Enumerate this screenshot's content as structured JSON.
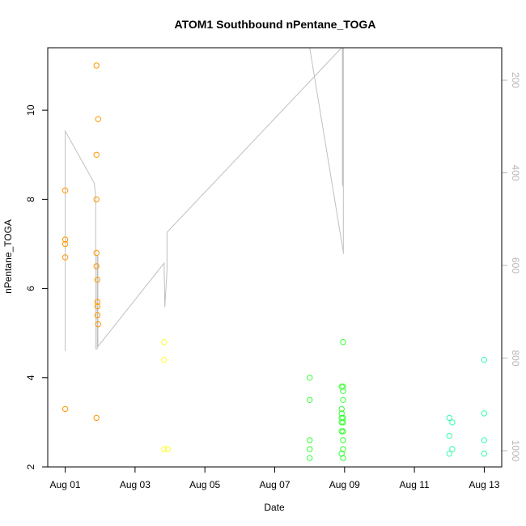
{
  "chart_data": {
    "type": "scatter",
    "title": "ATOM1 Southbound nPentane_TOGA",
    "xlabel": "Date",
    "ylabel": "nPentane_TOGA",
    "x_ticks": [
      "Aug 01",
      "Aug 03",
      "Aug 05",
      "Aug 07",
      "Aug 09",
      "Aug 11",
      "Aug 13"
    ],
    "xlim": [
      "Jul 31 12:00",
      "Aug 13 12:00"
    ],
    "ylim": [
      2,
      11.4
    ],
    "y_ticks": [
      2,
      4,
      6,
      8,
      10
    ],
    "right_axis": {
      "ticks": [
        200,
        400,
        600,
        800,
        1000
      ],
      "range": [
        130,
        1035
      ],
      "inverted": true,
      "color": "#b8b8b8"
    },
    "grid": false,
    "series": [
      {
        "color": "#ff9900",
        "points": [
          {
            "x": "Aug 01 00:00",
            "y": 8.2
          },
          {
            "x": "Aug 01 00:00",
            "y": 7.1
          },
          {
            "x": "Aug 01 00:00",
            "y": 7.0
          },
          {
            "x": "Aug 01 00:00",
            "y": 6.7
          },
          {
            "x": "Aug 01 00:00",
            "y": 3.3
          },
          {
            "x": "Aug 01 21:30",
            "y": 11.0
          },
          {
            "x": "Aug 01 21:30",
            "y": 9.0
          },
          {
            "x": "Aug 01 21:30",
            "y": 8.0
          },
          {
            "x": "Aug 01 21:30",
            "y": 6.8
          },
          {
            "x": "Aug 01 21:30",
            "y": 6.5
          },
          {
            "x": "Aug 01 21:30",
            "y": 3.1
          },
          {
            "x": "Aug 01 22:10",
            "y": 6.2
          },
          {
            "x": "Aug 01 22:10",
            "y": 5.7
          },
          {
            "x": "Aug 01 22:10",
            "y": 5.6
          },
          {
            "x": "Aug 01 22:10",
            "y": 5.4
          },
          {
            "x": "Aug 01 22:40",
            "y": 9.8
          },
          {
            "x": "Aug 01 22:40",
            "y": 5.2
          }
        ]
      },
      {
        "color": "#ffff33",
        "points": [
          {
            "x": "Aug 03 20:00",
            "y": 4.8
          },
          {
            "x": "Aug 03 20:00",
            "y": 4.4
          },
          {
            "x": "Aug 03 20:00",
            "y": 2.4
          },
          {
            "x": "Aug 03 22:30",
            "y": 2.4
          }
        ]
      },
      {
        "color": "#33ff33",
        "points": [
          {
            "x": "Aug 08 00:00",
            "y": 4.0
          },
          {
            "x": "Aug 08 00:00",
            "y": 3.5
          },
          {
            "x": "Aug 08 00:00",
            "y": 2.6
          },
          {
            "x": "Aug 08 00:00",
            "y": 2.4
          },
          {
            "x": "Aug 08 00:00",
            "y": 2.2
          },
          {
            "x": "Aug 08 22:00",
            "y": 3.8
          },
          {
            "x": "Aug 08 22:00",
            "y": 3.3
          },
          {
            "x": "Aug 08 22:00",
            "y": 3.2
          },
          {
            "x": "Aug 08 22:00",
            "y": 3.1
          },
          {
            "x": "Aug 08 22:00",
            "y": 3.0
          },
          {
            "x": "Aug 08 22:00",
            "y": 2.8
          },
          {
            "x": "Aug 08 22:00",
            "y": 2.3
          },
          {
            "x": "Aug 08 23:00",
            "y": 4.8
          },
          {
            "x": "Aug 08 23:00",
            "y": 3.8
          },
          {
            "x": "Aug 08 23:00",
            "y": 3.7
          },
          {
            "x": "Aug 08 23:00",
            "y": 3.5
          },
          {
            "x": "Aug 08 23:00",
            "y": 3.1
          },
          {
            "x": "Aug 08 23:00",
            "y": 3.0
          },
          {
            "x": "Aug 08 23:00",
            "y": 2.8
          },
          {
            "x": "Aug 08 23:00",
            "y": 2.6
          },
          {
            "x": "Aug 08 23:00",
            "y": 2.4
          },
          {
            "x": "Aug 08 23:00",
            "y": 2.2
          }
        ]
      },
      {
        "color": "#33ffaa",
        "points": [
          {
            "x": "Aug 12 00:00",
            "y": 3.1
          },
          {
            "x": "Aug 12 00:00",
            "y": 2.7
          },
          {
            "x": "Aug 12 00:00",
            "y": 2.3
          },
          {
            "x": "Aug 12 02:00",
            "y": 3.0
          },
          {
            "x": "Aug 12 02:00",
            "y": 2.4
          },
          {
            "x": "Aug 13 00:00",
            "y": 4.4
          },
          {
            "x": "Aug 13 00:00",
            "y": 3.2
          },
          {
            "x": "Aug 13 00:00",
            "y": 2.6
          },
          {
            "x": "Aug 13 00:00",
            "y": 2.3
          }
        ]
      }
    ],
    "line_series": {
      "color": "#c0c0c0",
      "axis": "right",
      "points": [
        {
          "x": "Aug 01 00:00",
          "y": 785
        },
        {
          "x": "Aug 01 00:00",
          "y": 310
        },
        {
          "x": "Aug 01 20:00",
          "y": 422
        },
        {
          "x": "Aug 01 21:00",
          "y": 455
        },
        {
          "x": "Aug 01 21:00",
          "y": 780
        },
        {
          "x": "Aug 01 22:00",
          "y": 780
        },
        {
          "x": "Aug 01 22:00",
          "y": 580
        },
        {
          "x": "Aug 01 22:30",
          "y": 580
        },
        {
          "x": "Aug 01 22:30",
          "y": 775
        },
        {
          "x": "Aug 03 20:00",
          "y": 595
        },
        {
          "x": "Aug 03 20:30",
          "y": 690
        },
        {
          "x": "Aug 03 22:00",
          "y": 610
        },
        {
          "x": "Aug 03 22:00",
          "y": 528
        },
        {
          "x": "Aug 03 23:00",
          "y": 525
        },
        {
          "x": "Aug 08 22:00",
          "y": 130
        },
        {
          "x": "Aug 08 22:30",
          "y": 130
        },
        {
          "x": "Aug 08 22:30",
          "y": 425
        },
        {
          "x": "Aug 08 23:00",
          "y": 430
        },
        {
          "x": "Aug 08 23:00",
          "y": 130
        },
        {
          "x": "Aug 08 23:10",
          "y": 130
        },
        {
          "x": "Aug 08 23:10",
          "y": 570
        },
        {
          "x": "Aug 08 23:20",
          "y": 575
        },
        {
          "x": "Aug 08 00:00",
          "y": 130
        }
      ]
    }
  }
}
